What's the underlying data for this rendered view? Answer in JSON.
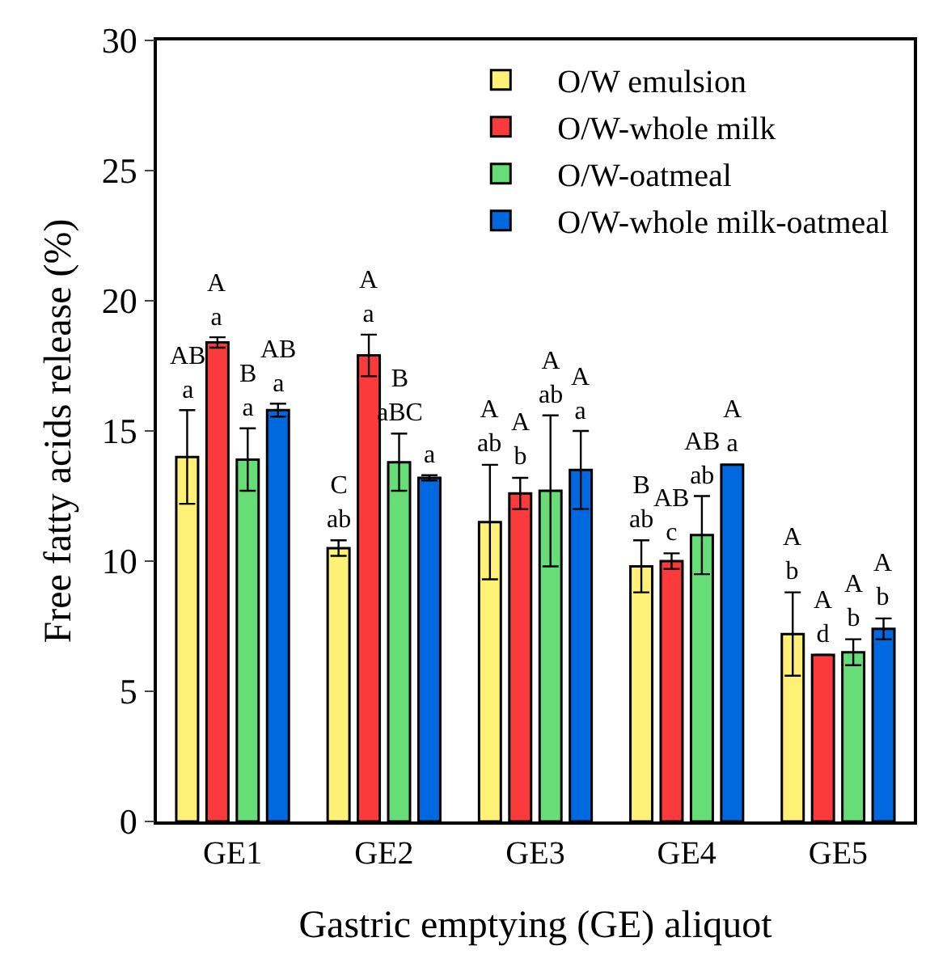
{
  "chart_data": {
    "type": "bar",
    "xlabel": "Gastric emptying (GE) aliquot",
    "ylabel": "Free fatty acids release (%)",
    "categories": [
      "GE1",
      "GE2",
      "GE3",
      "GE4",
      "GE5"
    ],
    "series": [
      {
        "name": "O/W emulsion",
        "color": "#fff176",
        "values": [
          14.0,
          10.5,
          11.5,
          9.8,
          7.2
        ],
        "errors": [
          1.8,
          0.3,
          2.2,
          1.0,
          1.6
        ]
      },
      {
        "name": "O/W-whole milk",
        "color": "#fb3b3b",
        "values": [
          18.4,
          17.9,
          12.6,
          10.0,
          6.4
        ],
        "errors": [
          0.2,
          0.8,
          0.6,
          0.3,
          null
        ]
      },
      {
        "name": "O/W-oatmeal",
        "color": "#66dd77",
        "values": [
          13.9,
          13.8,
          12.7,
          11.0,
          6.5
        ],
        "errors": [
          1.2,
          1.1,
          2.9,
          1.5,
          0.5
        ]
      },
      {
        "name": "O/W-whole milk-oatmeal",
        "color": "#0069e0",
        "values": [
          15.8,
          13.2,
          13.5,
          13.7,
          7.4
        ],
        "errors": [
          0.25,
          0.1,
          1.5,
          null,
          0.4
        ]
      }
    ],
    "ylim": [
      0,
      30
    ],
    "yticks": [
      0,
      5,
      10,
      15,
      20,
      25,
      30
    ],
    "grid": false,
    "legend": "top right",
    "annotations": [
      "AB\na",
      "A\na",
      "B\na",
      "AB\na",
      "C\nab",
      "A\na",
      "B\naBC",
      "a",
      "A\nab",
      "A\nb",
      "A\nab",
      "A\na",
      "B\nab",
      "AB\nc",
      "AB\nab",
      "A\na",
      "A\nb",
      "A\nd",
      "A\nb",
      "A\nb"
    ]
  }
}
